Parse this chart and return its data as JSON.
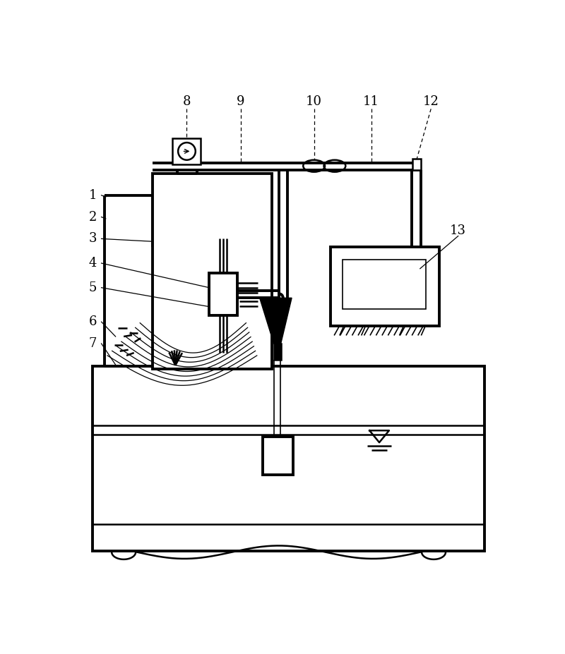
{
  "bg": "#ffffff",
  "lc": "#000000",
  "lw_thin": 1.2,
  "lw_med": 1.8,
  "lw_thick": 2.8,
  "figsize": [
    8.0,
    9.27
  ],
  "dpi": 100,
  "labels_top": [
    [
      "8",
      200,
      42
    ],
    [
      "9",
      295,
      42
    ],
    [
      "10",
      410,
      42
    ],
    [
      "11",
      545,
      42
    ],
    [
      "12",
      672,
      42
    ]
  ],
  "labels_left": [
    [
      "1",
      38,
      215
    ],
    [
      "2",
      38,
      255
    ],
    [
      "3",
      38,
      295
    ],
    [
      "4",
      38,
      340
    ],
    [
      "5",
      38,
      385
    ],
    [
      "6",
      38,
      448
    ],
    [
      "7",
      38,
      490
    ]
  ],
  "label_13": [
    710,
    290
  ]
}
